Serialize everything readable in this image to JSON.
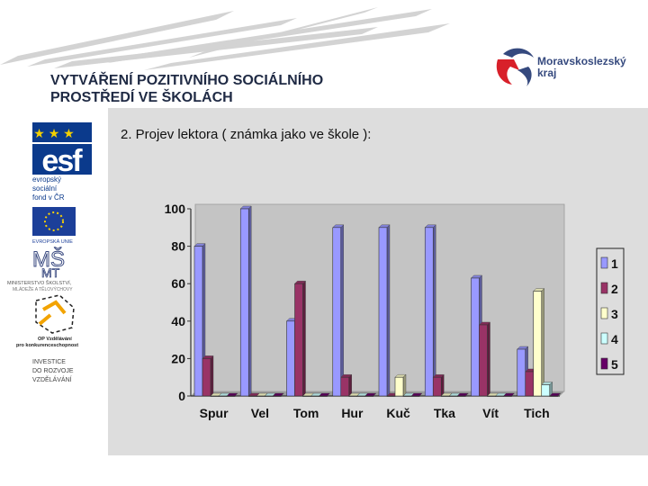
{
  "header": {
    "title_line1": "VYTVÁŘENÍ POZITIVNÍHO SOCIÁLNÍHO",
    "title_line2": "PROSTŘEDÍ VE ŠKOLÁCH"
  },
  "region_logo": {
    "line1": "Moravskoslezský",
    "line2": "kraj",
    "color": "#35497e",
    "accent": "#d8202a"
  },
  "left_logos": {
    "esf_caption": [
      "evropský",
      "sociální",
      "fond v ČR"
    ],
    "eu_caption": "EVROPSKÁ UNIE",
    "msmt_caption": [
      "MINISTERSTVO ŠKOLSTVÍ,",
      "MLÁDEŽE A TĚLOVÝCHOVY"
    ],
    "op_caption": [
      "OP Vzdělávání",
      "pro konkurenceschopnost"
    ],
    "invest_caption": [
      "INVESTICE",
      "DO ROZVOJE",
      "VZDĚLÁVÁNÍ"
    ]
  },
  "slide": {
    "subtitle": "2. Projev lektora ( známka jako ve škole ):"
  },
  "chart_data": {
    "type": "bar",
    "categories": [
      "Spur",
      "Vel",
      "Tom",
      "Hur",
      "Kuč",
      "Tka",
      "Vít",
      "Tich"
    ],
    "series": [
      {
        "name": "1",
        "color": "#9999ff",
        "values": [
          80,
          100,
          40,
          90,
          90,
          90,
          63,
          25
        ]
      },
      {
        "name": "2",
        "color": "#993366",
        "values": [
          20,
          0,
          60,
          10,
          0,
          10,
          38,
          13
        ]
      },
      {
        "name": "3",
        "color": "#ffffcc",
        "values": [
          0,
          0,
          0,
          0,
          10,
          0,
          0,
          56
        ]
      },
      {
        "name": "4",
        "color": "#ccffff",
        "values": [
          0,
          0,
          0,
          0,
          0,
          0,
          0,
          6
        ]
      },
      {
        "name": "5",
        "color": "#660066",
        "values": [
          0,
          0,
          0,
          0,
          0,
          0,
          0,
          0
        ]
      }
    ],
    "yticks": [
      0,
      20,
      40,
      60,
      80,
      100
    ],
    "ylim": [
      0,
      100
    ],
    "grid": false,
    "legend": "right"
  }
}
